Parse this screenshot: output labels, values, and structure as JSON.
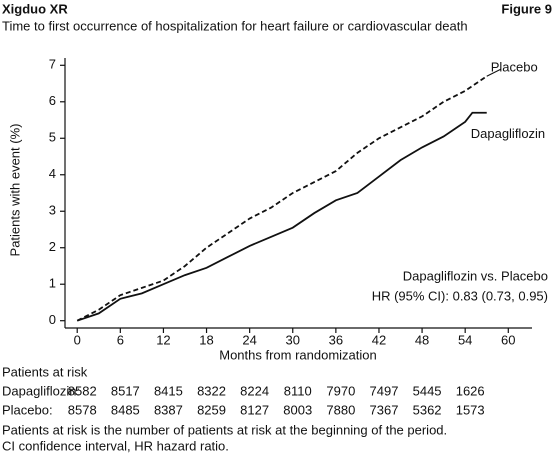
{
  "chart_data": {
    "type": "line",
    "header": "Xigduo XR",
    "figure": "Figure 9",
    "title": "Time to first occurrence of hospitalization for heart failure or cardiovascular death",
    "x_label": "Months from randomization",
    "y_label": "Patients with event (%)",
    "xlim": [
      -1.7,
      63.3
    ],
    "ylim": [
      -0.2,
      7.2
    ],
    "xticks": [
      0,
      6,
      12,
      18,
      24,
      30,
      36,
      42,
      48,
      54,
      60
    ],
    "yticks": [
      0,
      1,
      2,
      3,
      4,
      5,
      6,
      7
    ],
    "series": [
      {
        "name": "Placebo",
        "color": "#111111",
        "style": "dashed",
        "x": [
          0,
          3,
          6,
          9,
          12,
          15,
          18,
          21,
          24,
          27,
          30,
          33,
          36,
          39,
          42,
          45,
          48,
          51,
          54,
          57
        ],
        "values": [
          0,
          0.3,
          0.7,
          0.9,
          1.1,
          1.5,
          2.0,
          2.4,
          2.8,
          3.1,
          3.5,
          3.8,
          4.1,
          4.6,
          5.0,
          5.3,
          5.6,
          6.0,
          6.3,
          6.7
        ]
      },
      {
        "name": "Dapagliflozin",
        "color": "#111111",
        "style": "solid",
        "x": [
          0,
          3,
          6,
          9,
          12,
          15,
          18,
          21,
          24,
          27,
          30,
          33,
          36,
          39,
          42,
          45,
          48,
          51,
          54,
          55,
          57
        ],
        "values": [
          0,
          0.2,
          0.6,
          0.75,
          1.0,
          1.25,
          1.45,
          1.75,
          2.05,
          2.3,
          2.55,
          2.95,
          3.3,
          3.5,
          3.95,
          4.4,
          4.75,
          5.05,
          5.45,
          5.7,
          5.7
        ]
      }
    ],
    "annotations": [
      "Dapagliflozin vs. Placebo",
      "HR (95% CI):  0.83 (0.73, 0.95)"
    ],
    "risk_table": {
      "title": "Patients at risk",
      "rows": [
        {
          "name": "Dapagliflozin:",
          "values": [
            8582,
            8517,
            8415,
            8322,
            8224,
            8110,
            7970,
            7497,
            5445,
            1626
          ]
        },
        {
          "name": "Placebo:",
          "values": [
            8578,
            8485,
            8387,
            8259,
            8127,
            8003,
            7880,
            7367,
            5362,
            1573
          ]
        }
      ]
    },
    "footnotes": [
      "Patients at risk is the number of patients at risk at the beginning of the period.",
      "CI confidence interval, HR hazard ratio."
    ]
  }
}
